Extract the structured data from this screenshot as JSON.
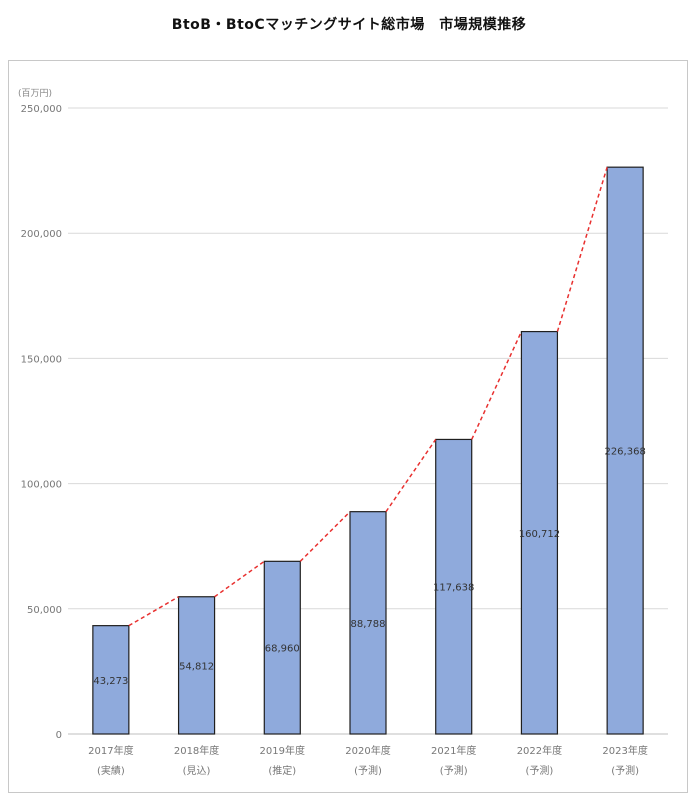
{
  "chart_data": {
    "type": "bar",
    "title": "BtoB・BtoCマッチングサイト総市場　市場規模推移",
    "unit_label": "(百万円)",
    "categories": [
      [
        "2017年度",
        "(実績)"
      ],
      [
        "2018年度",
        "(見込)"
      ],
      [
        "2019年度",
        "(推定)"
      ],
      [
        "2020年度",
        "(予測)"
      ],
      [
        "2021年度",
        "(予測)"
      ],
      [
        "2022年度",
        "(予測)"
      ],
      [
        "2023年度",
        "(予測)"
      ]
    ],
    "values": [
      43273,
      54812,
      68960,
      88788,
      117638,
      160712,
      226368
    ],
    "value_labels": [
      "43,273",
      "54,812",
      "68,960",
      "88,788",
      "117,638",
      "160,712",
      "226,368"
    ],
    "ylim": [
      0,
      250000
    ],
    "yticks": [
      0,
      50000,
      100000,
      150000,
      200000,
      250000
    ],
    "ytick_labels": [
      "0",
      "50,000",
      "100,000",
      "150,000",
      "200,000",
      "250,000"
    ],
    "grid": true,
    "trend_line": "dashed red connecting bar tops",
    "colors": {
      "bar_fill": "#8faadc",
      "bar_stroke": "#1f1f1f",
      "trend_line": "#e8302f",
      "grid": "#d9d9d9"
    }
  }
}
